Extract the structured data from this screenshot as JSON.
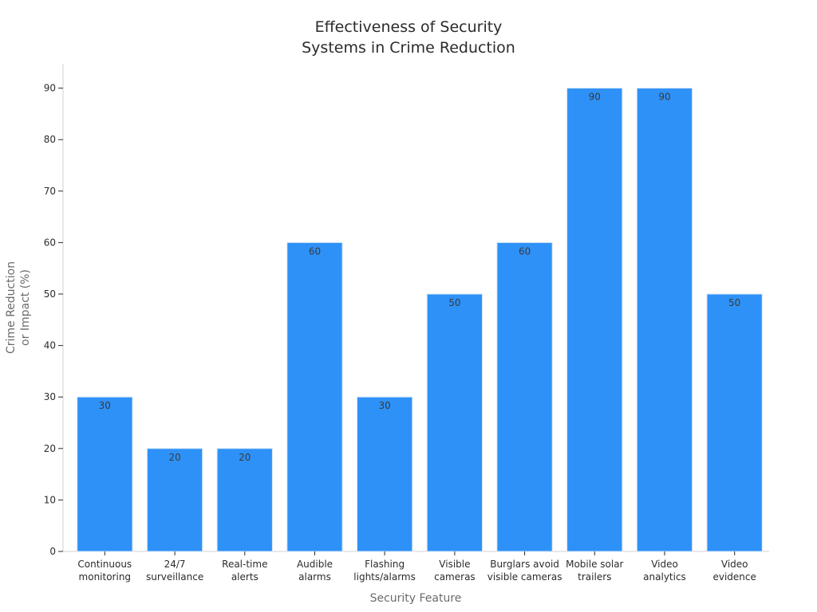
{
  "chart_data": {
    "type": "bar",
    "title_lines": [
      "Effectiveness of Security",
      "Systems in Crime Reduction"
    ],
    "xlabel": "Security Feature",
    "ylabel_lines": [
      "Crime Reduction",
      "or Impact (%)"
    ],
    "categories": [
      [
        "Continuous",
        "monitoring"
      ],
      [
        "24/7",
        "surveillance"
      ],
      [
        "Real-time",
        "alerts"
      ],
      [
        "Audible",
        "alarms"
      ],
      [
        "Flashing",
        "lights/alarms"
      ],
      [
        "Visible",
        "cameras"
      ],
      [
        "Burglars avoid",
        "visible cameras"
      ],
      [
        "Mobile solar",
        "trailers"
      ],
      [
        "Video",
        "analytics"
      ],
      [
        "Video",
        "evidence"
      ]
    ],
    "values": [
      30,
      20,
      20,
      60,
      30,
      50,
      60,
      90,
      90,
      50
    ],
    "data_labels": [
      "30",
      "20",
      "20",
      "60",
      "30",
      "50",
      "60",
      "90",
      "90",
      "50"
    ],
    "y_ticks": [
      "0",
      "10",
      "20",
      "30",
      "40",
      "50",
      "60",
      "70",
      "80",
      "90"
    ],
    "ylim": [
      0,
      95
    ],
    "grid": false,
    "legend": "none",
    "colors": {
      "bar_fill": "#2e91f7",
      "bar_stroke": "#d6e6f7"
    }
  }
}
